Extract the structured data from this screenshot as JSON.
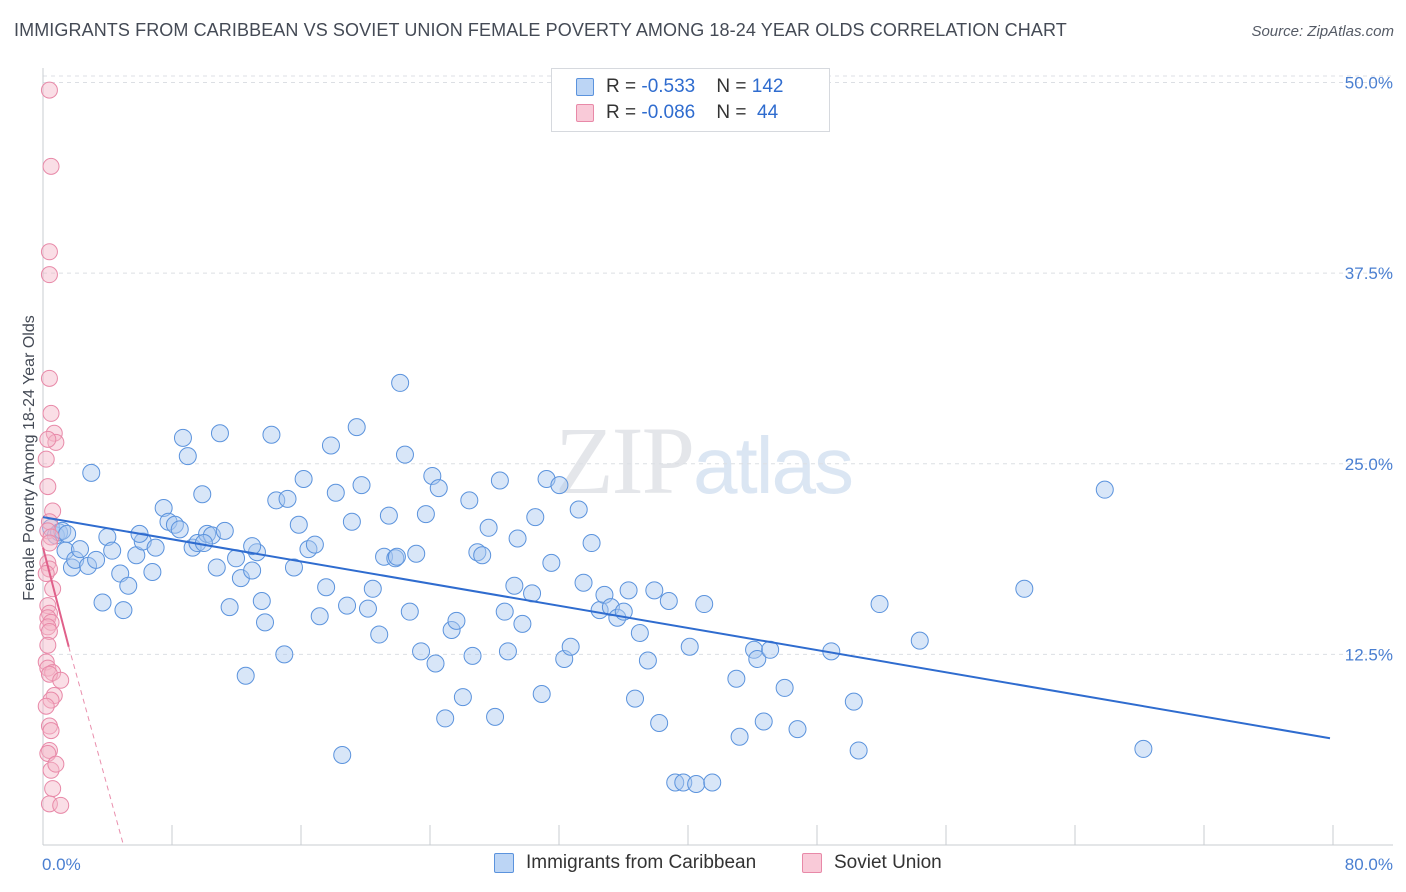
{
  "title": "IMMIGRANTS FROM CARIBBEAN VS SOVIET UNION FEMALE POVERTY AMONG 18-24 YEAR OLDS CORRELATION CHART",
  "source": "Source: ZipAtlas.com",
  "watermark": {
    "zip": "ZIP",
    "atlas": "atlas"
  },
  "legend": {
    "rows": [
      {
        "r_label": "R = ",
        "r_value": "-0.533",
        "n_label": "N = ",
        "n_value": "142"
      },
      {
        "r_label": "R = ",
        "r_value": "-0.086",
        "n_label": "N = ",
        "n_value": " 44"
      }
    ]
  },
  "colors": {
    "blue_fill": "#a9c8f0",
    "blue_stroke": "#5b93dd",
    "blue_line": "#2f6ccf",
    "pink_fill": "#f5b5c8",
    "pink_stroke": "#e889a8",
    "pink_line": "#e0608a",
    "grid": "#dcdfe4",
    "axis_text": "#4a7fd1"
  },
  "chart_data": {
    "type": "scatter",
    "title": "IMMIGRANTS FROM CARIBBEAN VS SOVIET UNION FEMALE POVERTY AMONG 18-24 YEAR OLDS CORRELATION CHART",
    "xlabel": "",
    "ylabel": "Female Poverty Among 18-24 Year Olds",
    "xlim": [
      0,
      80
    ],
    "ylim": [
      0,
      52
    ],
    "x_tick_labels": [
      "0.0%",
      "80.0%"
    ],
    "y_ticks": [
      12.5,
      25,
      37.5,
      50
    ],
    "y_tick_labels": [
      "12.5%",
      "25.0%",
      "37.5%",
      "50.0%"
    ],
    "grid": "horizontal dashed",
    "legend_position": "bottom",
    "series": [
      {
        "name": "Immigrants from Caribbean",
        "R": -0.533,
        "N": 142,
        "trend": {
          "x": [
            0,
            80
          ],
          "y": [
            21.5,
            7.0
          ],
          "style": "solid"
        },
        "points": [
          [
            0.5,
            20.8
          ],
          [
            0.8,
            20.3
          ],
          [
            1.0,
            20.5
          ],
          [
            1.2,
            20.6
          ],
          [
            1.5,
            20.4
          ],
          [
            1.4,
            19.3
          ],
          [
            1.8,
            18.2
          ],
          [
            2.0,
            18.7
          ],
          [
            2.3,
            19.4
          ],
          [
            2.8,
            18.3
          ],
          [
            3.0,
            24.4
          ],
          [
            3.3,
            18.7
          ],
          [
            3.7,
            15.9
          ],
          [
            4.0,
            20.2
          ],
          [
            4.3,
            19.3
          ],
          [
            4.8,
            17.8
          ],
          [
            5.0,
            15.4
          ],
          [
            5.3,
            17.0
          ],
          [
            5.8,
            19.0
          ],
          [
            6.2,
            19.9
          ],
          [
            6.8,
            17.9
          ],
          [
            7.0,
            19.5
          ],
          [
            7.5,
            22.1
          ],
          [
            7.8,
            21.2
          ],
          [
            8.2,
            21.0
          ],
          [
            8.5,
            20.7
          ],
          [
            8.7,
            26.7
          ],
          [
            9.0,
            25.5
          ],
          [
            9.3,
            19.5
          ],
          [
            9.6,
            19.8
          ],
          [
            9.9,
            23.0
          ],
          [
            10.2,
            20.4
          ],
          [
            10.5,
            20.3
          ],
          [
            10.8,
            18.2
          ],
          [
            11.0,
            27.0
          ],
          [
            11.3,
            20.6
          ],
          [
            11.6,
            15.6
          ],
          [
            12.0,
            18.8
          ],
          [
            12.3,
            17.5
          ],
          [
            12.6,
            11.1
          ],
          [
            13.0,
            18.0
          ],
          [
            13.3,
            19.2
          ],
          [
            13.6,
            16.0
          ],
          [
            13.8,
            14.6
          ],
          [
            14.2,
            26.9
          ],
          [
            14.5,
            22.6
          ],
          [
            15.0,
            12.5
          ],
          [
            15.2,
            22.7
          ],
          [
            15.6,
            18.2
          ],
          [
            15.9,
            21.0
          ],
          [
            16.2,
            24.0
          ],
          [
            16.5,
            19.4
          ],
          [
            16.9,
            19.7
          ],
          [
            17.2,
            15.0
          ],
          [
            17.6,
            16.9
          ],
          [
            17.9,
            26.2
          ],
          [
            18.2,
            23.1
          ],
          [
            18.6,
            5.9
          ],
          [
            18.9,
            15.7
          ],
          [
            19.2,
            21.2
          ],
          [
            19.5,
            27.4
          ],
          [
            19.8,
            23.6
          ],
          [
            20.2,
            15.5
          ],
          [
            20.5,
            16.8
          ],
          [
            20.9,
            13.8
          ],
          [
            21.2,
            18.9
          ],
          [
            21.5,
            21.6
          ],
          [
            21.9,
            18.8
          ],
          [
            22.2,
            30.3
          ],
          [
            22.5,
            25.6
          ],
          [
            22.8,
            15.3
          ],
          [
            23.2,
            19.1
          ],
          [
            23.5,
            12.7
          ],
          [
            23.8,
            21.7
          ],
          [
            24.2,
            24.2
          ],
          [
            24.4,
            11.9
          ],
          [
            24.6,
            23.4
          ],
          [
            25.0,
            8.3
          ],
          [
            25.4,
            14.1
          ],
          [
            25.7,
            14.7
          ],
          [
            26.1,
            9.7
          ],
          [
            26.5,
            22.6
          ],
          [
            26.7,
            12.4
          ],
          [
            27.0,
            19.2
          ],
          [
            27.3,
            19.0
          ],
          [
            27.7,
            20.8
          ],
          [
            28.1,
            8.4
          ],
          [
            28.4,
            23.9
          ],
          [
            28.7,
            15.3
          ],
          [
            28.9,
            12.7
          ],
          [
            29.3,
            17.0
          ],
          [
            29.5,
            20.1
          ],
          [
            29.8,
            14.5
          ],
          [
            30.4,
            16.5
          ],
          [
            30.6,
            21.5
          ],
          [
            31.0,
            9.9
          ],
          [
            31.3,
            24.0
          ],
          [
            31.6,
            18.5
          ],
          [
            32.1,
            23.6
          ],
          [
            32.4,
            12.2
          ],
          [
            32.8,
            13.0
          ],
          [
            33.3,
            22.0
          ],
          [
            33.6,
            17.2
          ],
          [
            34.1,
            19.8
          ],
          [
            34.6,
            15.4
          ],
          [
            34.9,
            16.4
          ],
          [
            35.3,
            15.6
          ],
          [
            35.7,
            14.9
          ],
          [
            36.1,
            15.3
          ],
          [
            36.4,
            16.7
          ],
          [
            36.8,
            9.6
          ],
          [
            37.1,
            13.9
          ],
          [
            37.6,
            12.1
          ],
          [
            38.0,
            16.7
          ],
          [
            38.3,
            8.0
          ],
          [
            38.9,
            16.0
          ],
          [
            39.3,
            4.1
          ],
          [
            39.8,
            4.1
          ],
          [
            40.2,
            13.0
          ],
          [
            40.6,
            4.0
          ],
          [
            41.1,
            15.8
          ],
          [
            41.6,
            4.1
          ],
          [
            43.1,
            10.9
          ],
          [
            43.3,
            7.1
          ],
          [
            44.2,
            12.8
          ],
          [
            44.4,
            12.2
          ],
          [
            44.8,
            8.1
          ],
          [
            45.2,
            12.8
          ],
          [
            46.1,
            10.3
          ],
          [
            46.9,
            7.6
          ],
          [
            49.0,
            12.7
          ],
          [
            50.4,
            9.4
          ],
          [
            50.7,
            6.2
          ],
          [
            52.0,
            15.8
          ],
          [
            54.5,
            13.4
          ],
          [
            61.0,
            16.8
          ],
          [
            66.0,
            23.3
          ],
          [
            68.4,
            6.3
          ],
          [
            10.0,
            19.8
          ],
          [
            13.0,
            19.6
          ],
          [
            6.0,
            20.4
          ],
          [
            22.0,
            18.9
          ]
        ]
      },
      {
        "name": "Soviet Union",
        "R": -0.086,
        "N": 44,
        "trend_solid": {
          "x": [
            0,
            1.6
          ],
          "y": [
            19.5,
            13.0
          ]
        },
        "trend_dashed": {
          "x": [
            1.6,
            5.0
          ],
          "y": [
            13.0,
            -1.0
          ]
        },
        "points": [
          [
            0.4,
            49.5
          ],
          [
            0.5,
            44.5
          ],
          [
            0.4,
            38.9
          ],
          [
            0.4,
            37.4
          ],
          [
            0.4,
            30.6
          ],
          [
            0.5,
            28.3
          ],
          [
            0.7,
            27.0
          ],
          [
            0.8,
            26.4
          ],
          [
            0.3,
            26.6
          ],
          [
            0.2,
            25.3
          ],
          [
            0.3,
            23.5
          ],
          [
            0.6,
            21.9
          ],
          [
            0.4,
            21.2
          ],
          [
            0.3,
            20.6
          ],
          [
            0.5,
            20.2
          ],
          [
            0.4,
            19.8
          ],
          [
            0.3,
            18.5
          ],
          [
            0.4,
            18.1
          ],
          [
            0.2,
            17.8
          ],
          [
            0.3,
            15.7
          ],
          [
            0.4,
            15.2
          ],
          [
            0.3,
            14.9
          ],
          [
            0.5,
            14.6
          ],
          [
            0.3,
            14.3
          ],
          [
            0.4,
            14.0
          ],
          [
            0.2,
            12.0
          ],
          [
            0.3,
            11.6
          ],
          [
            0.6,
            11.3
          ],
          [
            0.4,
            11.2
          ],
          [
            1.1,
            10.8
          ],
          [
            0.7,
            9.8
          ],
          [
            0.5,
            9.5
          ],
          [
            0.4,
            7.8
          ],
          [
            0.5,
            7.5
          ],
          [
            0.4,
            6.2
          ],
          [
            0.3,
            6.0
          ],
          [
            0.5,
            4.9
          ],
          [
            0.6,
            3.7
          ],
          [
            0.4,
            2.7
          ],
          [
            1.1,
            2.6
          ],
          [
            0.3,
            13.1
          ],
          [
            0.6,
            16.8
          ],
          [
            0.2,
            9.1
          ],
          [
            0.8,
            5.3
          ]
        ]
      }
    ]
  },
  "bottom_legend": [
    {
      "label": "Immigrants from Caribbean"
    },
    {
      "label": "Soviet Union"
    }
  ]
}
